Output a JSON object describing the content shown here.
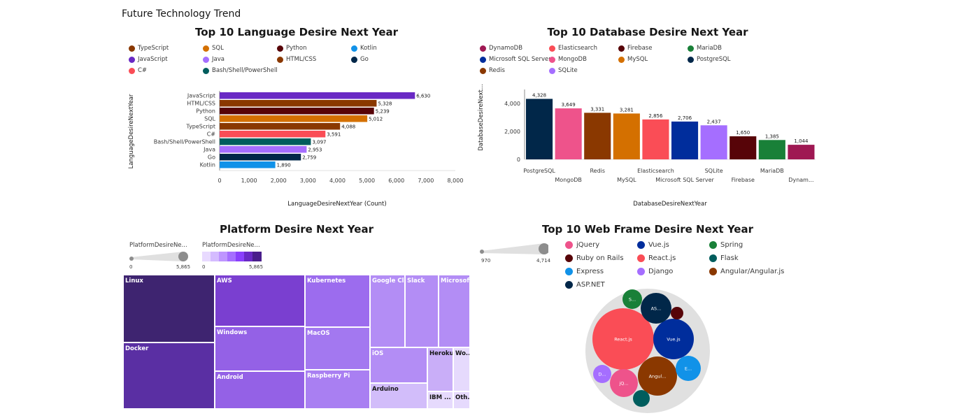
{
  "dashboard_title": "Future Technology Trend",
  "chart_data": [
    {
      "id": "lang",
      "type": "bar",
      "orientation": "horizontal",
      "title": "Top 10 Language Desire Next Year",
      "xlabel": "LanguageDesireNextYear (Count)",
      "ylabel": "LanguageDesireNextYear",
      "xlim": [
        0,
        8000
      ],
      "xticks": [
        "0",
        "1,000",
        "2,000",
        "3,000",
        "4,000",
        "5,000",
        "6,000",
        "7,000",
        "8,000"
      ],
      "categories": [
        "JavaScript",
        "HTML/CSS",
        "Python",
        "SQL",
        "TypeScript",
        "C#",
        "Bash/Shell/PowerShell",
        "Java",
        "Go",
        "Kotlin"
      ],
      "values": [
        6630,
        5328,
        5239,
        5012,
        4088,
        3591,
        3097,
        2953,
        2759,
        1890
      ],
      "value_labels": [
        "6,630",
        "5,328",
        "5,239",
        "5,012",
        "4,088",
        "3,591",
        "3,097",
        "2,953",
        "2,759",
        "1,890"
      ],
      "colors": [
        "#6929c4",
        "#8a3800",
        "#570408",
        "#d47000",
        "#8a3800",
        "#fa4d56",
        "#005d5d",
        "#a56eff",
        "#012749",
        "#1192e8"
      ],
      "legend": [
        {
          "label": "TypeScript",
          "color": "#8a3800"
        },
        {
          "label": "SQL",
          "color": "#d47000"
        },
        {
          "label": "Python",
          "color": "#570408"
        },
        {
          "label": "Kotlin",
          "color": "#1192e8"
        },
        {
          "label": "JavaScript",
          "color": "#6929c4"
        },
        {
          "label": "Java",
          "color": "#a56eff"
        },
        {
          "label": "HTML/CSS",
          "color": "#8a3800"
        },
        {
          "label": "Go",
          "color": "#012749"
        },
        {
          "label": "C#",
          "color": "#fa4d56"
        },
        {
          "label": "Bash/Shell/PowerShell",
          "color": "#005d5d"
        }
      ]
    },
    {
      "id": "db",
      "type": "bar",
      "orientation": "vertical",
      "title": "Top 10 Database Desire Next Year",
      "xlabel": "DatabaseDesireNextYear",
      "ylabel": "DatabaseDesireNext...",
      "ylim": [
        0,
        5000
      ],
      "yticks": [
        "0",
        "2,000",
        "4,000"
      ],
      "categories": [
        "PostgreSQL",
        "MongoDB",
        "Redis",
        "MySQL",
        "Elasticsearch",
        "Microsoft SQL Server",
        "SQLite",
        "Firebase",
        "MariaDB",
        "Dynam..."
      ],
      "values": [
        4328,
        3649,
        3331,
        3281,
        2856,
        2706,
        2437,
        1650,
        1385,
        1044
      ],
      "value_labels": [
        "4,328",
        "3,649",
        "3,331",
        "3,281",
        "2,856",
        "2,706",
        "2,437",
        "1,650",
        "1,385",
        "1,044"
      ],
      "colors": [
        "#012749",
        "#ee538b",
        "#8a3800",
        "#d47000",
        "#fa4d56",
        "#002d9c",
        "#a56eff",
        "#570408",
        "#198038",
        "#9f1853"
      ],
      "legend": [
        {
          "label": "DynamoDB",
          "color": "#9f1853"
        },
        {
          "label": "Elasticsearch",
          "color": "#fa4d56"
        },
        {
          "label": "Firebase",
          "color": "#570408"
        },
        {
          "label": "MariaDB",
          "color": "#198038"
        },
        {
          "label": "Microsoft SQL Server",
          "color": "#002d9c"
        },
        {
          "label": "MongoDB",
          "color": "#ee538b"
        },
        {
          "label": "MySQL",
          "color": "#d47000"
        },
        {
          "label": "PostgreSQL",
          "color": "#012749"
        },
        {
          "label": "Redis",
          "color": "#8a3800"
        },
        {
          "label": "SQLite",
          "color": "#a56eff"
        }
      ]
    },
    {
      "id": "platform",
      "type": "treemap",
      "title": "Platform Desire Next Year",
      "size_legend_label": "PlatformDesireNe...",
      "color_legend_label": "PlatformDesireNe...",
      "legend_min": "0",
      "legend_max": "5,865",
      "cells": [
        {
          "label": "Linux",
          "color": "#3e2470"
        },
        {
          "label": "Docker",
          "color": "#5a2fa3"
        },
        {
          "label": "AWS",
          "color": "#7a3fd0"
        },
        {
          "label": "Windows",
          "color": "#9461e6"
        },
        {
          "label": "Android",
          "color": "#9461e6"
        },
        {
          "label": "Kubernetes",
          "color": "#9c6cee"
        },
        {
          "label": "MacOS",
          "color": "#a378f0"
        },
        {
          "label": "Raspberry Pi",
          "color": "#a97ff2"
        },
        {
          "label": "Google Cl...",
          "color": "#b38df5"
        },
        {
          "label": "Slack",
          "color": "#b38df5"
        },
        {
          "label": "Microsof...",
          "color": "#b38df5"
        },
        {
          "label": "iOS",
          "color": "#b38df5"
        },
        {
          "label": "Arduino",
          "color": "#d2bdfa"
        },
        {
          "label": "Heroku",
          "color": "#c9aef8"
        },
        {
          "label": "Wo...",
          "color": "#e6dafd"
        },
        {
          "label": "IBM ...",
          "color": "#e6dafd"
        },
        {
          "label": "Oth...",
          "color": "#e6dafd"
        }
      ]
    },
    {
      "id": "web",
      "type": "bubble",
      "title": "Top 10 Web Frame Desire Next Year",
      "size_legend_min": "970",
      "size_legend_max": "4,714",
      "legend": [
        {
          "label": "jQuery",
          "color": "#ee538b"
        },
        {
          "label": "Vue.js",
          "color": "#002d9c"
        },
        {
          "label": "Spring",
          "color": "#198038"
        },
        {
          "label": "Ruby on Rails",
          "color": "#570408"
        },
        {
          "label": "React.js",
          "color": "#fa4d56"
        },
        {
          "label": "Flask",
          "color": "#005d5d"
        },
        {
          "label": "Express",
          "color": "#1192e8"
        },
        {
          "label": "Django",
          "color": "#a56eff"
        },
        {
          "label": "Angular/Angular.js",
          "color": "#8a3800"
        },
        {
          "label": "ASP.NET",
          "color": "#012749"
        }
      ],
      "bubbles": [
        {
          "name": "React.js",
          "label": "React.js",
          "value": 4714,
          "color": "#fa4d56"
        },
        {
          "name": "Vue.js",
          "label": "Vue.js",
          "value": 2900,
          "color": "#002d9c"
        },
        {
          "name": "Angular/Angular.js",
          "label": "Angul...",
          "value": 2700,
          "color": "#8a3800"
        },
        {
          "name": "ASP.NET",
          "label": "AS...",
          "value": 1600,
          "color": "#012749"
        },
        {
          "name": "jQuery",
          "label": "jQ...",
          "value": 1400,
          "color": "#ee538b"
        },
        {
          "name": "Express",
          "label": "E...",
          "value": 1100,
          "color": "#1192e8"
        },
        {
          "name": "Spring",
          "label": "S...",
          "value": 1000,
          "color": "#198038"
        },
        {
          "name": "Django",
          "label": "D...",
          "value": 990,
          "color": "#a56eff"
        },
        {
          "name": "Flask",
          "label": "",
          "value": 980,
          "color": "#005d5d"
        },
        {
          "name": "Ruby on Rails",
          "label": "",
          "value": 970,
          "color": "#570408"
        }
      ]
    }
  ]
}
